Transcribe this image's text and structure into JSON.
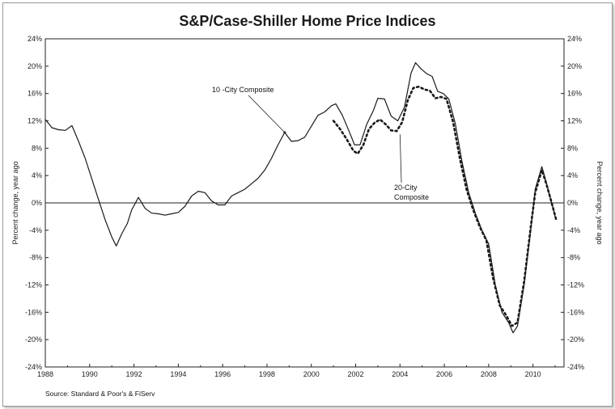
{
  "chart_data": {
    "type": "line",
    "title": "S&P/Case-Shiller Home Price Indices",
    "ylabel_left": "Percent change, year ago",
    "ylabel_right": "Percent change, year ago",
    "source": "Source: Standard & Poor's & FiServ",
    "xlim": [
      1988,
      2011.4
    ],
    "ylim": [
      -24,
      24
    ],
    "x_ticks": [
      {
        "value": 1988,
        "label": "1988"
      },
      {
        "value": 1990,
        "label": "1990"
      },
      {
        "value": 1992,
        "label": "1992"
      },
      {
        "value": 1994,
        "label": "1994"
      },
      {
        "value": 1996,
        "label": "1996"
      },
      {
        "value": 1998,
        "label": "1998"
      },
      {
        "value": 2000,
        "label": "2000"
      },
      {
        "value": 2002,
        "label": "2002"
      },
      {
        "value": 2004,
        "label": "2004"
      },
      {
        "value": 2006,
        "label": "2006"
      },
      {
        "value": 2008,
        "label": "2008"
      },
      {
        "value": 2010,
        "label": "2010"
      }
    ],
    "y_ticks": [
      {
        "value": 24,
        "label": "24%"
      },
      {
        "value": 20,
        "label": "20%"
      },
      {
        "value": 16,
        "label": "16%"
      },
      {
        "value": 12,
        "label": "12%"
      },
      {
        "value": 8,
        "label": "8%"
      },
      {
        "value": 4,
        "label": "4%"
      },
      {
        "value": 0,
        "label": "0%"
      },
      {
        "value": -4,
        "label": "-4%"
      },
      {
        "value": -8,
        "label": "-8%"
      },
      {
        "value": -12,
        "label": "-12%"
      },
      {
        "value": -16,
        "label": "-16%"
      },
      {
        "value": -20,
        "label": "-20%"
      },
      {
        "value": -24,
        "label": "-24%"
      }
    ],
    "zero_line": true,
    "series": [
      {
        "name": "10 -City Composite",
        "style": "solid",
        "color": "#1a1a1a",
        "points": [
          [
            1988.0,
            12.2
          ],
          [
            1988.3,
            11.0
          ],
          [
            1988.6,
            10.7
          ],
          [
            1988.9,
            10.6
          ],
          [
            1989.2,
            11.3
          ],
          [
            1989.5,
            9.0
          ],
          [
            1989.8,
            6.5
          ],
          [
            1990.1,
            3.5
          ],
          [
            1990.4,
            0.5
          ],
          [
            1990.7,
            -2.5
          ],
          [
            1991.0,
            -5.0
          ],
          [
            1991.2,
            -6.3
          ],
          [
            1991.45,
            -4.5
          ],
          [
            1991.7,
            -3.0
          ],
          [
            1991.9,
            -1.0
          ],
          [
            1992.2,
            0.8
          ],
          [
            1992.5,
            -0.8
          ],
          [
            1992.8,
            -1.5
          ],
          [
            1993.1,
            -1.6
          ],
          [
            1993.4,
            -1.8
          ],
          [
            1993.7,
            -1.6
          ],
          [
            1994.0,
            -1.4
          ],
          [
            1994.3,
            -0.5
          ],
          [
            1994.6,
            1.0
          ],
          [
            1994.9,
            1.7
          ],
          [
            1995.2,
            1.5
          ],
          [
            1995.5,
            0.3
          ],
          [
            1995.8,
            -0.3
          ],
          [
            1996.1,
            -0.3
          ],
          [
            1996.4,
            1.0
          ],
          [
            1996.7,
            1.5
          ],
          [
            1997.0,
            2.0
          ],
          [
            1997.3,
            2.8
          ],
          [
            1997.6,
            3.6
          ],
          [
            1997.9,
            4.8
          ],
          [
            1998.2,
            6.5
          ],
          [
            1998.5,
            8.5
          ],
          [
            1998.8,
            10.3
          ],
          [
            1999.1,
            9.0
          ],
          [
            1999.4,
            9.1
          ],
          [
            1999.7,
            9.6
          ],
          [
            2000.0,
            11.2
          ],
          [
            2000.3,
            12.8
          ],
          [
            2000.6,
            13.3
          ],
          [
            2000.9,
            14.2
          ],
          [
            2001.1,
            14.5
          ],
          [
            2001.4,
            12.8
          ],
          [
            2001.7,
            10.5
          ],
          [
            2001.95,
            8.5
          ],
          [
            2002.2,
            8.5
          ],
          [
            2002.5,
            11.5
          ],
          [
            2002.8,
            13.5
          ],
          [
            2003.0,
            15.3
          ],
          [
            2003.3,
            15.2
          ],
          [
            2003.6,
            12.7
          ],
          [
            2003.9,
            12.0
          ],
          [
            2004.2,
            14.0
          ],
          [
            2004.5,
            19.0
          ],
          [
            2004.7,
            20.5
          ],
          [
            2004.95,
            19.6
          ],
          [
            2005.2,
            18.9
          ],
          [
            2005.45,
            18.5
          ],
          [
            2005.7,
            16.3
          ],
          [
            2005.95,
            16.0
          ],
          [
            2006.2,
            15.2
          ],
          [
            2006.5,
            11.5
          ],
          [
            2006.8,
            6.0
          ],
          [
            2007.1,
            1.5
          ],
          [
            2007.4,
            -1.5
          ],
          [
            2007.7,
            -4.0
          ],
          [
            2008.0,
            -6.0
          ],
          [
            2008.3,
            -12.0
          ],
          [
            2008.6,
            -16.0
          ],
          [
            2008.9,
            -17.5
          ],
          [
            2009.1,
            -19.0
          ],
          [
            2009.3,
            -18.0
          ],
          [
            2009.6,
            -12.0
          ],
          [
            2009.9,
            -4.0
          ],
          [
            2010.1,
            2.0
          ],
          [
            2010.4,
            5.3
          ],
          [
            2010.6,
            3.0
          ],
          [
            2010.8,
            0.5
          ],
          [
            2011.0,
            -2.0
          ]
        ]
      },
      {
        "name": "20-City Composite",
        "style": "dotted",
        "color": "#1a1a1a",
        "points": [
          [
            2001.0,
            12.0
          ],
          [
            2001.3,
            10.8
          ],
          [
            2001.6,
            9.3
          ],
          [
            2001.9,
            7.6
          ],
          [
            2002.1,
            7.2
          ],
          [
            2002.35,
            8.5
          ],
          [
            2002.6,
            10.8
          ],
          [
            2002.85,
            11.7
          ],
          [
            2003.1,
            12.2
          ],
          [
            2003.35,
            11.5
          ],
          [
            2003.6,
            10.6
          ],
          [
            2003.85,
            10.5
          ],
          [
            2004.1,
            11.8
          ],
          [
            2004.35,
            15.0
          ],
          [
            2004.6,
            16.8
          ],
          [
            2004.85,
            17.0
          ],
          [
            2005.1,
            16.6
          ],
          [
            2005.35,
            16.4
          ],
          [
            2005.6,
            15.3
          ],
          [
            2005.85,
            15.5
          ],
          [
            2006.1,
            15.2
          ],
          [
            2006.4,
            11.8
          ],
          [
            2006.7,
            6.5
          ],
          [
            2007.0,
            2.0
          ],
          [
            2007.3,
            -1.0
          ],
          [
            2007.6,
            -3.5
          ],
          [
            2007.9,
            -5.5
          ],
          [
            2008.2,
            -11.0
          ],
          [
            2008.5,
            -15.0
          ],
          [
            2008.8,
            -16.5
          ],
          [
            2009.05,
            -18.0
          ],
          [
            2009.3,
            -17.5
          ],
          [
            2009.6,
            -11.5
          ],
          [
            2009.9,
            -3.5
          ],
          [
            2010.1,
            1.5
          ],
          [
            2010.4,
            4.8
          ],
          [
            2010.6,
            2.8
          ],
          [
            2010.8,
            0.5
          ],
          [
            2011.05,
            -2.5
          ]
        ]
      }
    ],
    "annotations": [
      {
        "id": "ten-city",
        "lines": [
          "10 -City Composite"
        ],
        "arrow_to": [
          1998.8,
          10.3
        ]
      },
      {
        "id": "twenty-city",
        "lines": [
          "20-City",
          "Composite"
        ],
        "arrow_to": [
          2004.0,
          10.5
        ]
      }
    ]
  }
}
